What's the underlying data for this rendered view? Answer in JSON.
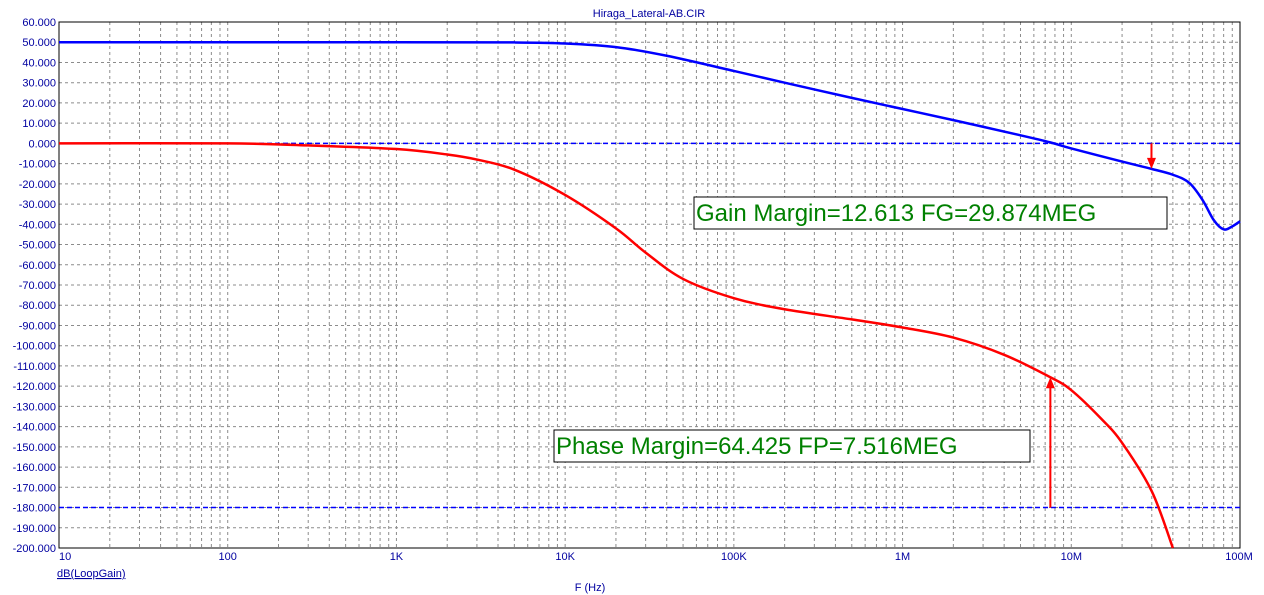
{
  "chart_data": {
    "type": "line",
    "title": "Hiraga_Lateral-AB.CIR",
    "xlabel": "F (Hz)",
    "ylabel": "",
    "trace_label": "dB(LoopGain)",
    "x_scale": "log",
    "xlim": [
      10,
      100000000
    ],
    "ylim": [
      -200,
      60
    ],
    "x_ticks": [
      10,
      100,
      1000,
      10000,
      100000,
      1000000,
      10000000,
      100000000
    ],
    "x_tick_labels": [
      "10",
      "100",
      "1K",
      "10K",
      "100K",
      "1M",
      "10M",
      "100M"
    ],
    "y_ticks": [
      60,
      50,
      40,
      30,
      20,
      10,
      0,
      -10,
      -20,
      -30,
      -40,
      -50,
      -60,
      -70,
      -80,
      -90,
      -100,
      -110,
      -120,
      -130,
      -140,
      -150,
      -160,
      -170,
      -180,
      -190,
      -200
    ],
    "y_tick_labels": [
      "60.000",
      "50.000",
      "40.000",
      "30.000",
      "20.000",
      "10.000",
      "0.000",
      "-10.000",
      "-20.000",
      "-30.000",
      "-40.000",
      "-50.000",
      "-60.000",
      "-70.000",
      "-80.000",
      "-90.000",
      "-100.000",
      "-110.000",
      "-120.000",
      "-130.000",
      "-140.000",
      "-150.000",
      "-160.000",
      "-170.000",
      "-180.000",
      "-190.000",
      "-200.000"
    ],
    "grid": true,
    "series": [
      {
        "color": "#0000ff",
        "x": [
          10,
          1000,
          5000,
          10000,
          20000,
          40000,
          100000,
          200000,
          500000,
          1000000,
          2000000,
          5000000,
          7500000,
          10000000,
          20000000,
          29874000,
          40000000,
          50000000,
          60000000,
          70000000,
          80000000,
          90000000,
          100000000
        ],
        "y": [
          50,
          50,
          49.9,
          49.4,
          47.6,
          43.3,
          35.8,
          30,
          22.5,
          17,
          11.5,
          4,
          0.5,
          -2.5,
          -9,
          -12.6,
          -15.5,
          -19.5,
          -28,
          -38,
          -42.5,
          -41,
          -38.5
        ]
      },
      {
        "color": "#ff0000",
        "x": [
          10,
          100,
          300,
          1000,
          2000,
          3000,
          5000,
          10000,
          20000,
          30000,
          50000,
          100000,
          200000,
          500000,
          1000000,
          2000000,
          4000000,
          7516000,
          10000000,
          15000000,
          20000000,
          30000000,
          40000000
        ],
        "y": [
          0,
          0,
          -1,
          -2.8,
          -5.5,
          -8,
          -13,
          -25.5,
          -42,
          -54,
          -67,
          -76.5,
          -82,
          -87,
          -91,
          -96,
          -104.5,
          -115.6,
          -122,
          -136,
          -148,
          -172,
          -200
        ]
      }
    ],
    "reference_lines": [
      {
        "y": 0,
        "color": "#0000ff"
      },
      {
        "y": -180,
        "color": "#0000ff"
      }
    ],
    "markers": [
      {
        "x": 29874000,
        "y_from": 0,
        "y_to": -12.613,
        "color": "#ff0000"
      },
      {
        "x": 7516000,
        "y_from": -180,
        "y_to": -115.575,
        "color": "#ff0000"
      }
    ],
    "annotations": [
      {
        "text": "Gain Margin=12.613 FG=29.874MEG",
        "color": "#008000"
      },
      {
        "text": "Phase Margin=64.425 FP=7.516MEG",
        "color": "#008000"
      }
    ]
  }
}
